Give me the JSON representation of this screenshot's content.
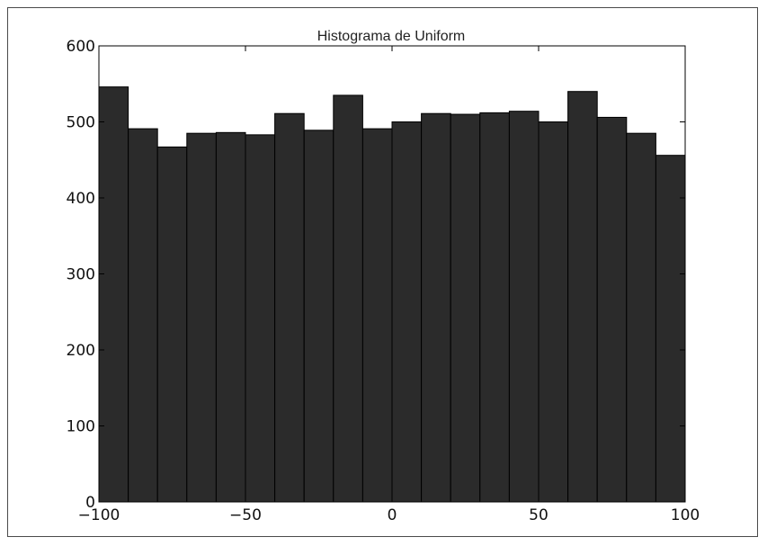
{
  "chart_data": {
    "type": "bar",
    "title": "Histograma de Uniform",
    "xlabel": "",
    "ylabel": "",
    "bin_edges": [
      -100,
      -90,
      -80,
      -70,
      -60,
      -50,
      -40,
      -30,
      -20,
      -10,
      0,
      10,
      20,
      30,
      40,
      50,
      60,
      70,
      80,
      90,
      100
    ],
    "values": [
      546,
      491,
      467,
      485,
      486,
      483,
      511,
      489,
      535,
      491,
      500,
      511,
      510,
      512,
      514,
      500,
      540,
      506,
      485,
      456
    ],
    "xlim": [
      -100,
      100
    ],
    "ylim": [
      0,
      600
    ],
    "xticks": [
      -100,
      -50,
      0,
      50,
      100
    ],
    "xtick_labels": [
      "−100",
      "−50",
      "0",
      "50",
      "100"
    ],
    "yticks": [
      0,
      100,
      200,
      300,
      400,
      500,
      600
    ],
    "ytick_labels": [
      "0",
      "100",
      "200",
      "300",
      "400",
      "500",
      "600"
    ],
    "grid": false,
    "bar_color": "#2b2b2b",
    "edge_color": "#000000"
  }
}
